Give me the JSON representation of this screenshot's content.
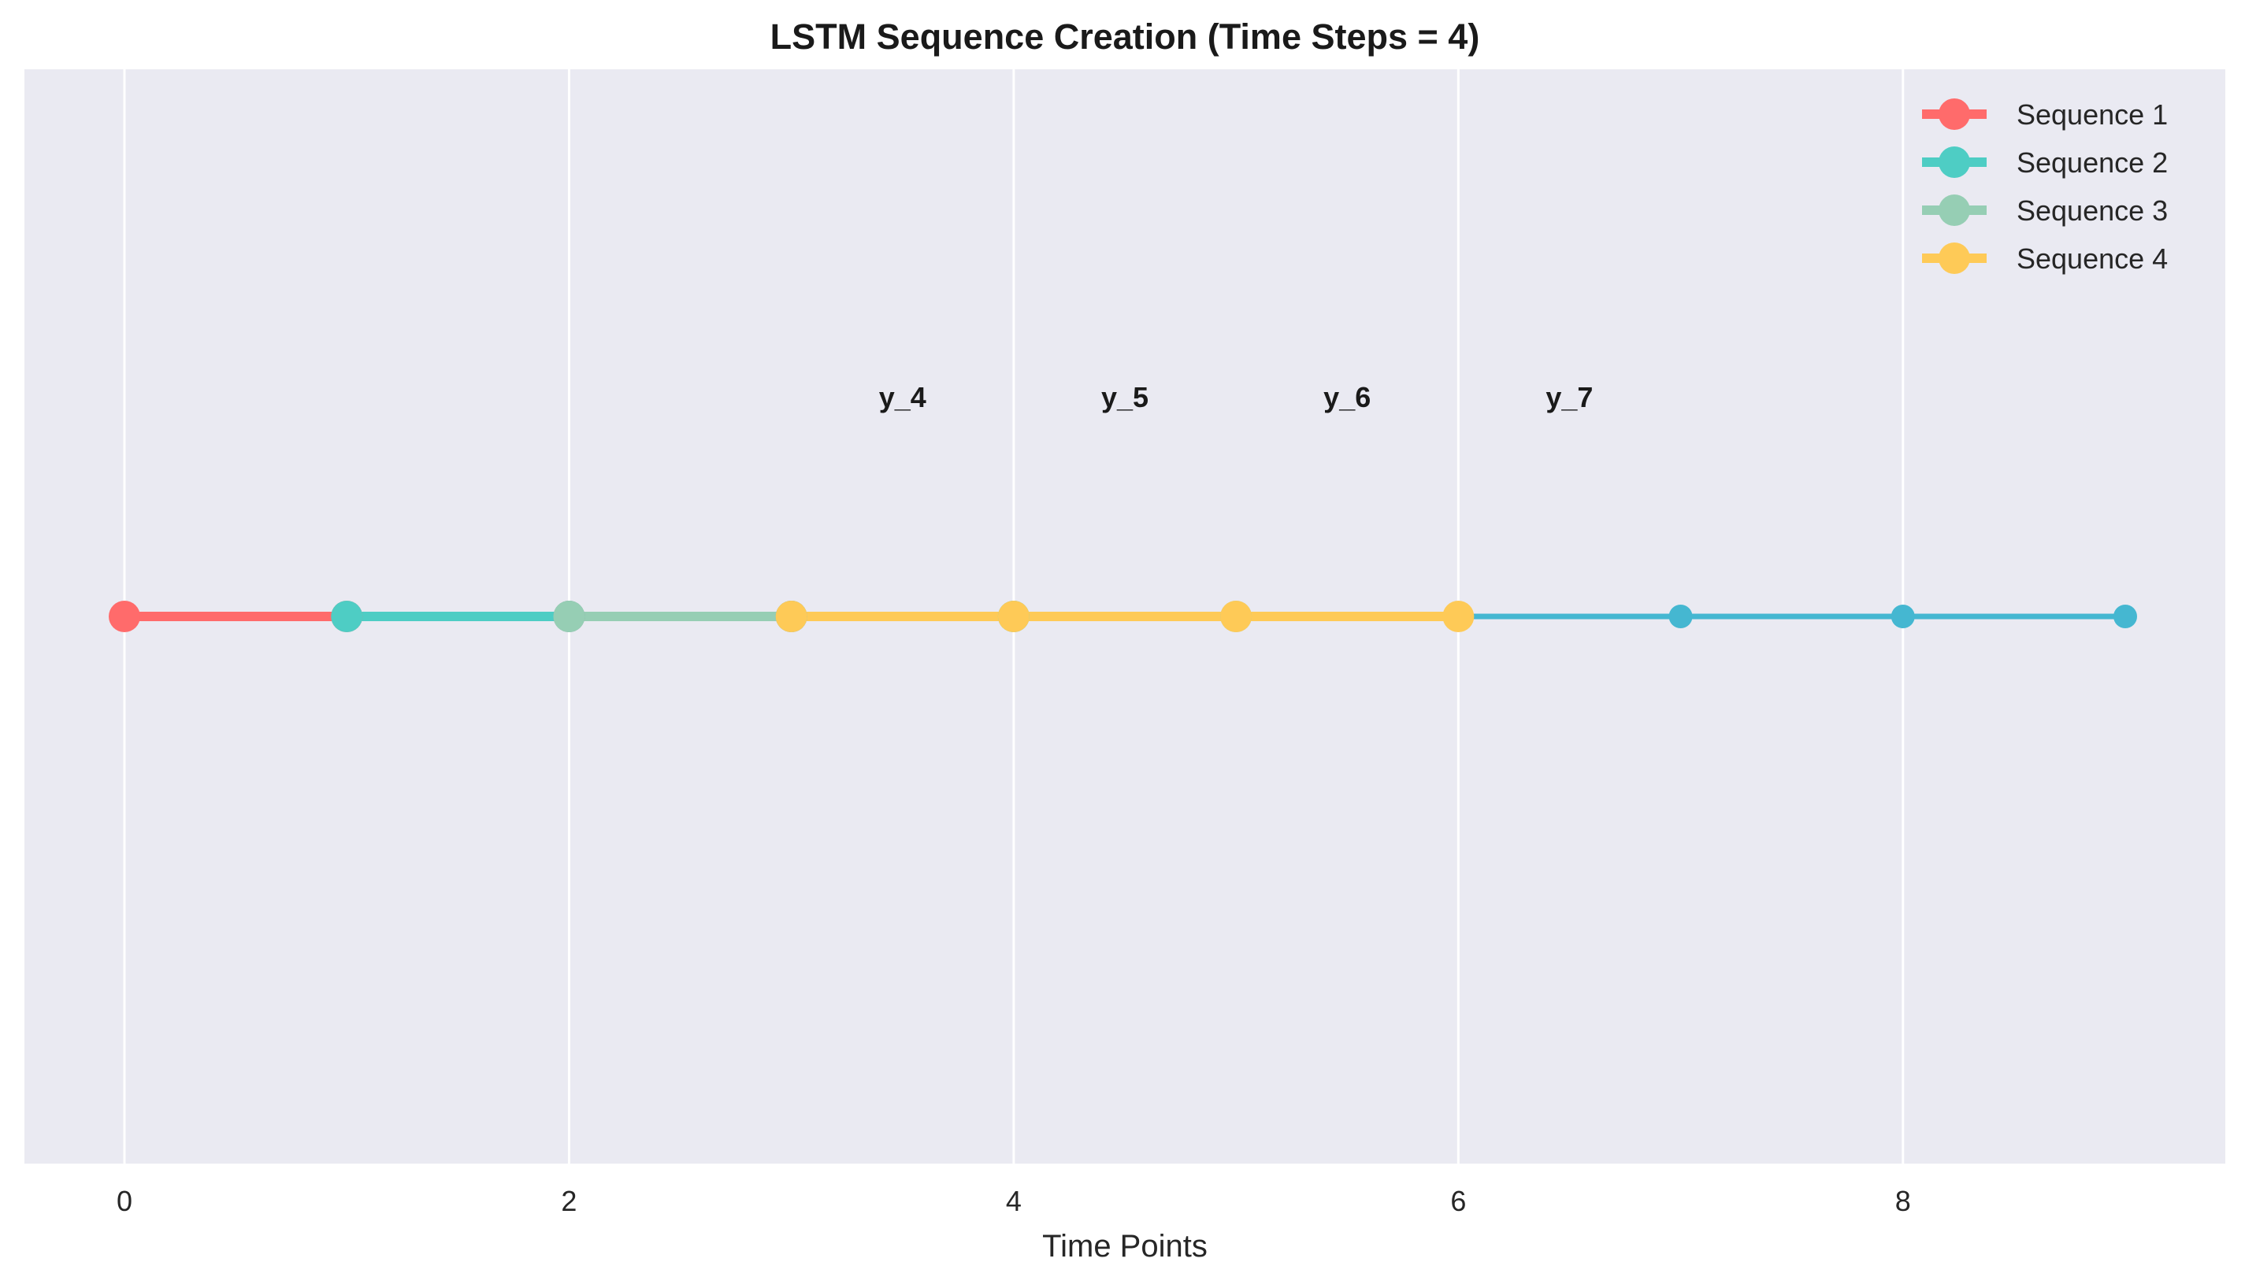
{
  "chart_data": {
    "type": "line",
    "title": "LSTM Sequence Creation (Time Steps = 4)",
    "xlabel": "Time Points",
    "ylabel": "",
    "xlim": [
      -0.45,
      9.45
    ],
    "ylim": [
      -0.25,
      0.25
    ],
    "xticks": [
      "0",
      "2",
      "4",
      "6",
      "8"
    ],
    "xtick_values": [
      0,
      2,
      4,
      6,
      8
    ],
    "grid": true,
    "legend_position": "top-right",
    "base_series": {
      "x": [
        0,
        1,
        2,
        3,
        4,
        5,
        6,
        7,
        8,
        9
      ],
      "y": [
        0,
        0,
        0,
        0,
        0,
        0,
        0,
        0,
        0,
        0
      ],
      "color": "#45B7D1"
    },
    "series": [
      {
        "name": "Sequence 1",
        "x": [
          0,
          1,
          2,
          3
        ],
        "y": [
          0,
          0,
          0,
          0
        ],
        "color": "#FF6B6B"
      },
      {
        "name": "Sequence 2",
        "x": [
          1,
          2,
          3,
          4
        ],
        "y": [
          0,
          0,
          0,
          0
        ],
        "color": "#4ECDC4"
      },
      {
        "name": "Sequence 3",
        "x": [
          2,
          3,
          4,
          5
        ],
        "y": [
          0,
          0,
          0,
          0
        ],
        "color": "#96CEB4"
      },
      {
        "name": "Sequence 4",
        "x": [
          3,
          4,
          5,
          6
        ],
        "y": [
          0,
          0,
          0,
          0
        ],
        "color": "#FECA57"
      }
    ],
    "annotations": [
      {
        "text": "y_4",
        "x": 3.5,
        "y": 0.1
      },
      {
        "text": "y_5",
        "x": 4.5,
        "y": 0.1
      },
      {
        "text": "y_6",
        "x": 5.5,
        "y": 0.1
      },
      {
        "text": "y_7",
        "x": 6.5,
        "y": 0.1
      }
    ],
    "colors": {
      "plot_background": "#EAEAF2",
      "grid": "#FFFFFF"
    }
  }
}
